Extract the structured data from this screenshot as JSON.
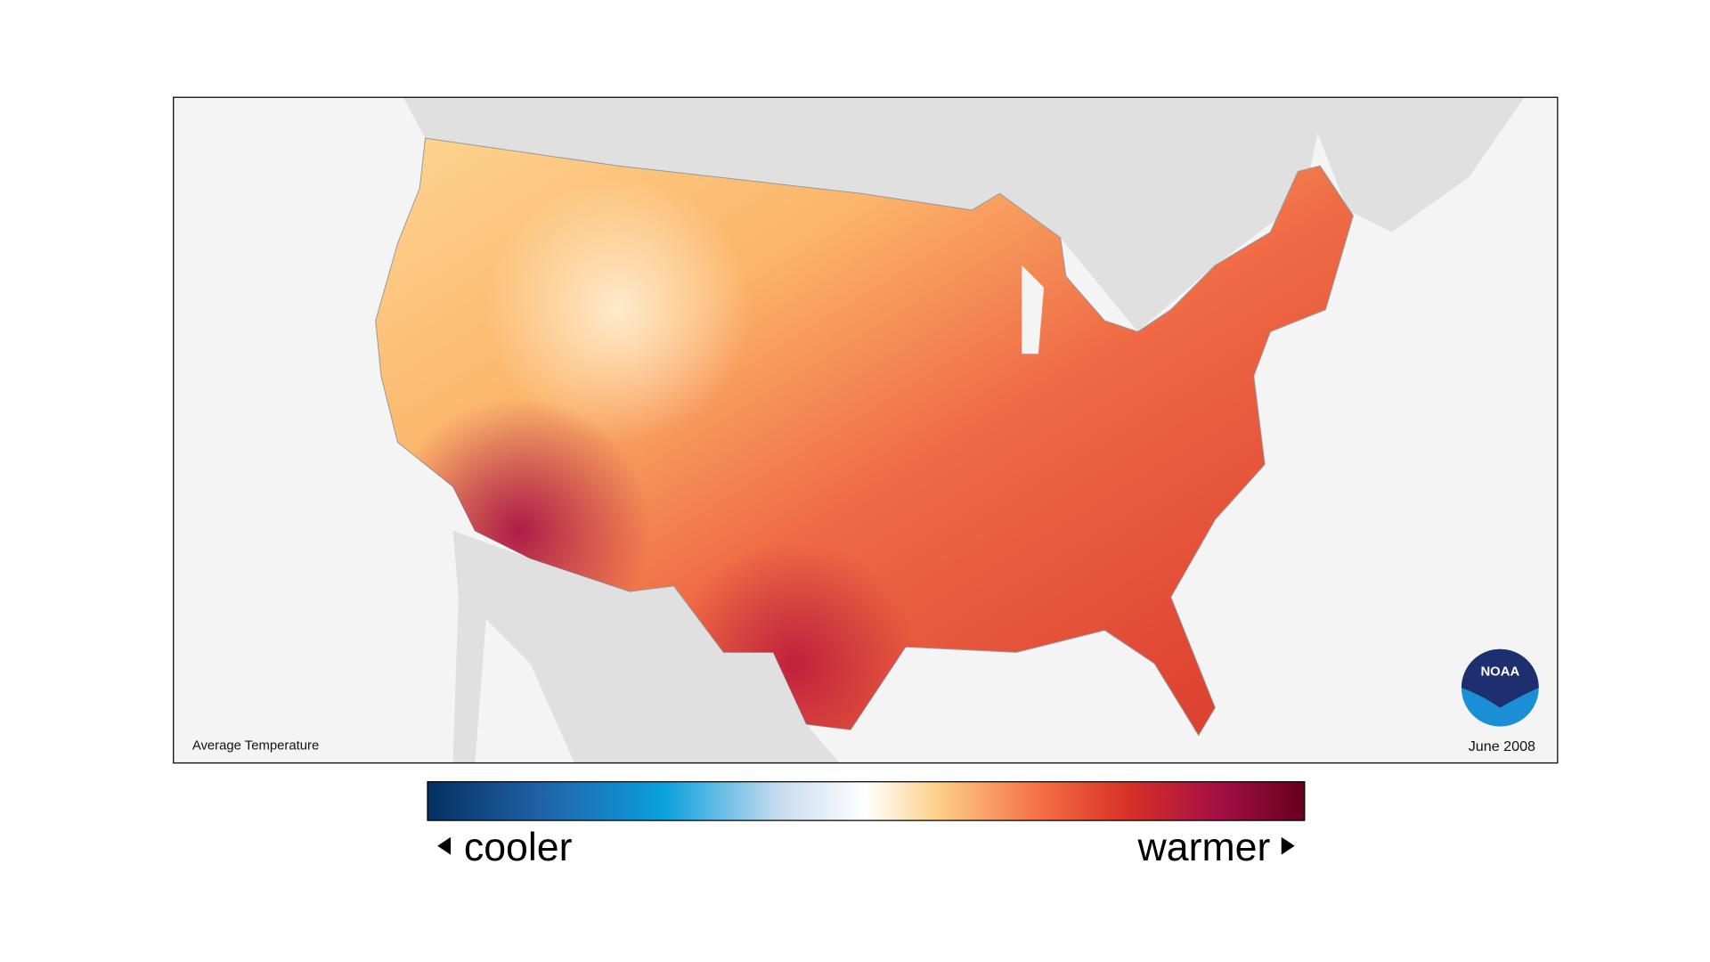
{
  "map": {
    "caption": "Average Temperature",
    "date": "June 2008"
  },
  "legend": {
    "low_label": "cooler",
    "high_label": "warmer"
  },
  "logo": {
    "text": "NOAA"
  }
}
